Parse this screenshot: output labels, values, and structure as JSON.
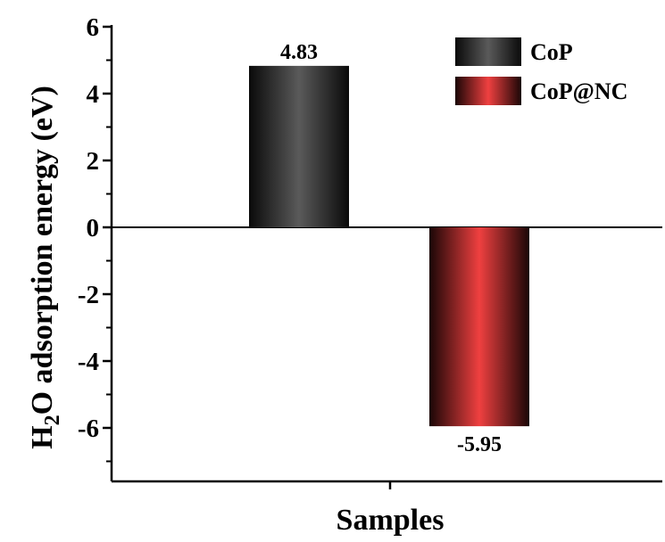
{
  "chart_data": {
    "type": "bar",
    "categories": [
      "CoP",
      "CoP@NC"
    ],
    "values": [
      4.83,
      -5.95
    ],
    "data_labels": [
      "4.83",
      "-5.95"
    ],
    "ylim": [
      -7.6,
      6
    ],
    "yticks": [
      6,
      4,
      2,
      0,
      -2,
      -4,
      -6
    ],
    "ytick_labels": [
      "6",
      "4",
      "2",
      "0",
      "-2",
      "-4",
      "-6"
    ],
    "xlabel": "Samples",
    "ylabel": {
      "prefix": "H",
      "sub": "2",
      "suffix": "O adsorption energy (eV)"
    },
    "legend": {
      "position": "top-right",
      "entries": [
        "CoP",
        "CoP@NC"
      ]
    },
    "colors": {
      "CoP": {
        "dark": "#0a0a0a",
        "mid": "#5a5a5a"
      },
      "CoP@NC": {
        "dark": "#1a0606",
        "mid": "#ef4040"
      }
    },
    "grid": false
  }
}
